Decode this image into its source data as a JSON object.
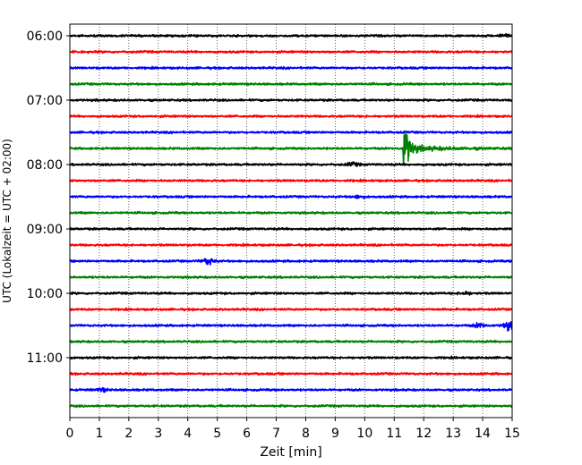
{
  "chart_data": {
    "type": "line",
    "title": "",
    "xlabel": "Zeit  [min]",
    "ylabel": "UTC (Lokalzeit = UTC + 02:00)",
    "xlim": [
      0,
      15
    ],
    "x_ticks": [
      "0",
      "1",
      "2",
      "3",
      "4",
      "5",
      "6",
      "7",
      "8",
      "9",
      "10",
      "11",
      "12",
      "13",
      "14",
      "15"
    ],
    "y_ticks": [
      "06:00",
      "07:00",
      "08:00",
      "09:00",
      "10:00",
      "11:00"
    ],
    "grid": "vertical dotted",
    "legend": "none",
    "trace_interval_min": 15,
    "colors": [
      "#000000",
      "#ff0000",
      "#0000ff",
      "#008000"
    ],
    "traces": [
      {
        "start": "06:00",
        "color": "#000000",
        "events": [
          {
            "t": 14.7,
            "amp": 1.5
          }
        ]
      },
      {
        "start": "06:15",
        "color": "#ff0000",
        "events": []
      },
      {
        "start": "06:30",
        "color": "#0000ff",
        "events": []
      },
      {
        "start": "06:45",
        "color": "#008000",
        "events": []
      },
      {
        "start": "07:00",
        "color": "#000000",
        "events": []
      },
      {
        "start": "07:15",
        "color": "#ff0000",
        "events": []
      },
      {
        "start": "07:30",
        "color": "#0000ff",
        "events": []
      },
      {
        "start": "07:45",
        "color": "#008000",
        "events": [
          {
            "t": 11.35,
            "amp": 30,
            "decay": 1.2
          }
        ]
      },
      {
        "start": "08:00",
        "color": "#000000",
        "events": [
          {
            "t": 9.6,
            "amp": 1.6
          }
        ]
      },
      {
        "start": "08:15",
        "color": "#ff0000",
        "events": []
      },
      {
        "start": "08:30",
        "color": "#0000ff",
        "events": [
          {
            "t": 9.8,
            "amp": 1.2
          }
        ]
      },
      {
        "start": "08:45",
        "color": "#008000",
        "events": []
      },
      {
        "start": "09:00",
        "color": "#000000",
        "events": []
      },
      {
        "start": "09:15",
        "color": "#ff0000",
        "events": []
      },
      {
        "start": "09:30",
        "color": "#0000ff",
        "events": [
          {
            "t": 4.7,
            "amp": 3.2
          }
        ]
      },
      {
        "start": "09:45",
        "color": "#008000",
        "events": []
      },
      {
        "start": "10:00",
        "color": "#000000",
        "events": [
          {
            "t": 13.4,
            "amp": 1.4
          }
        ]
      },
      {
        "start": "10:15",
        "color": "#ff0000",
        "events": []
      },
      {
        "start": "10:30",
        "color": "#0000ff",
        "events": [
          {
            "t": 13.9,
            "amp": 2.0
          },
          {
            "t": 14.9,
            "amp": 4.0
          }
        ]
      },
      {
        "start": "10:45",
        "color": "#008000",
        "events": []
      },
      {
        "start": "11:00",
        "color": "#000000",
        "events": []
      },
      {
        "start": "11:15",
        "color": "#ff0000",
        "events": []
      },
      {
        "start": "11:30",
        "color": "#0000ff",
        "events": [
          {
            "t": 1.1,
            "amp": 1.3
          }
        ]
      },
      {
        "start": "11:45",
        "color": "#008000",
        "events": []
      }
    ]
  }
}
